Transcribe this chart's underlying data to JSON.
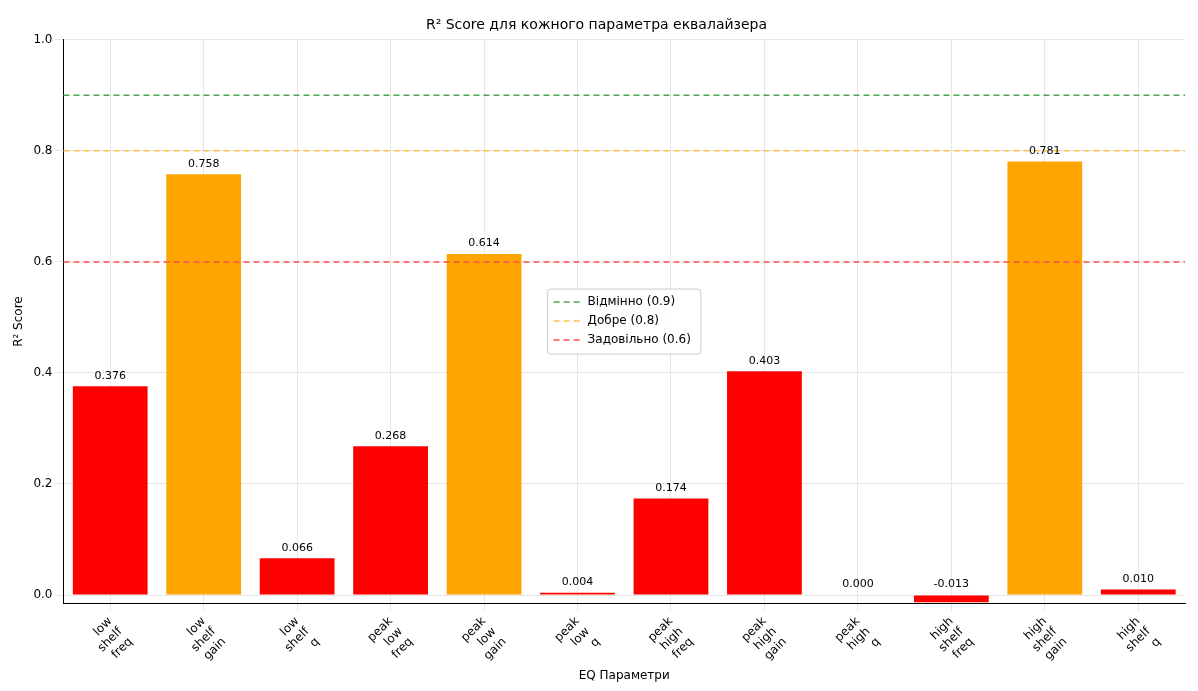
{
  "chart_data": {
    "type": "bar",
    "title": "R² Score для кожного параметра еквалайзера",
    "xlabel": "EQ Параметри",
    "ylabel": "R² Score",
    "categories": [
      "low\nshelf\nfreq",
      "low\nshelf\ngain",
      "low\nshelf\nq",
      "peak\nlow\nfreq",
      "peak\nlow\ngain",
      "peak\nlow\nq",
      "peak\nhigh\nfreq",
      "peak\nhigh\ngain",
      "peak\nhigh\nq",
      "high\nshelf\nfreq",
      "high\nshelf\ngain",
      "high\nshelf\nq"
    ],
    "values": [
      0.376,
      0.758,
      0.066,
      0.268,
      0.614,
      0.004,
      0.174,
      0.403,
      0.0,
      -0.013,
      0.781,
      0.01
    ],
    "value_labels": [
      "0.376",
      "0.758",
      "0.066",
      "0.268",
      "0.614",
      "0.004",
      "0.174",
      "0.403",
      "0.000",
      "-0.013",
      "0.781",
      "0.010"
    ],
    "colors": [
      "#ff0000",
      "#ffa500",
      "#ff0000",
      "#ff0000",
      "#ffa500",
      "#ff0000",
      "#ff0000",
      "#ff0000",
      "#ff0000",
      "#ff0000",
      "#ffa500",
      "#ff0000"
    ],
    "ylim": [
      -0.015,
      1.0
    ],
    "yticks": [
      {
        "value": 0,
        "label": "0.0"
      },
      {
        "value": 0.2,
        "label": "0.2"
      },
      {
        "value": 0.4,
        "label": "0.4"
      },
      {
        "value": 0.6,
        "label": "0.6"
      },
      {
        "value": 0.8,
        "label": "0.8"
      },
      {
        "value": 1.0,
        "label": "1.0"
      }
    ],
    "ref_lines": [
      {
        "axis": "y",
        "value": 0.9,
        "label": "Відмінно (0.9)",
        "color": "#4da64d",
        "line_style": "dashed"
      },
      {
        "axis": "y",
        "value": 0.8,
        "label": "Добре (0.8)",
        "color": "#ffc04d",
        "line_style": "dashed"
      },
      {
        "axis": "y",
        "value": 0.6,
        "label": "Задовільно (0.6)",
        "color": "#ff4d4d",
        "line_style": "dashed"
      }
    ],
    "grid": true,
    "legend": "center"
  }
}
